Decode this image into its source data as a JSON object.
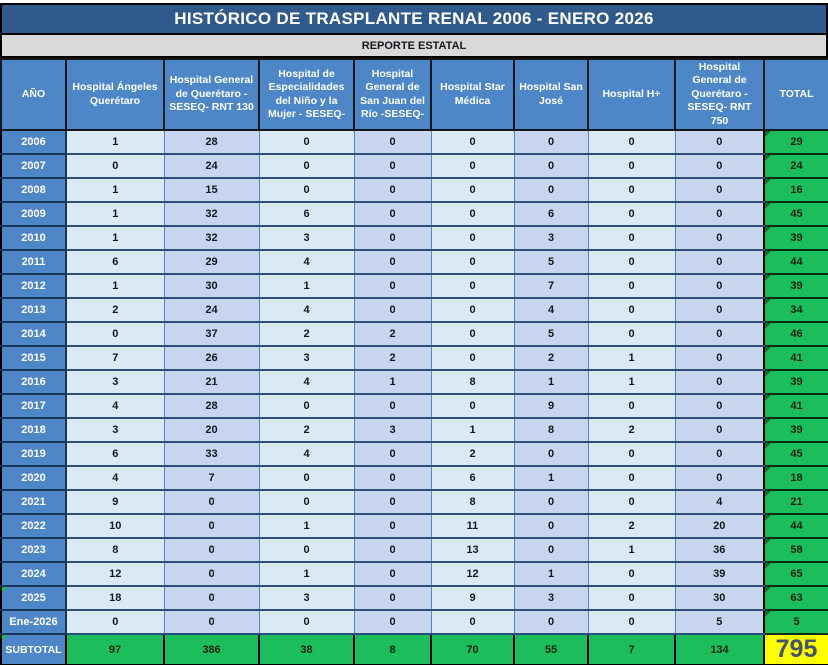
{
  "title": "HISTÓRICO DE TRASPLANTE RENAL 2006 - ENERO 2026",
  "subtitle": "REPORTE ESTATAL",
  "table": {
    "headers": [
      "AÑO",
      "Hospital Ángeles Querétaro",
      "Hospital General de Querétaro - SESEQ- RNT 130",
      "Hospital de Especialidades del Niño y la Mujer - SESEQ-",
      "Hospital General de San Juan del Río -SESEQ-",
      "Hospital Star Médica",
      "Hospital San José",
      "Hospital H+",
      "Hospital General de Querétaro - SESEQ- RNT 750",
      "TOTAL"
    ],
    "rows": [
      {
        "year": "2006",
        "values": [
          1,
          28,
          0,
          0,
          0,
          0,
          0,
          0
        ],
        "total": 29
      },
      {
        "year": "2007",
        "values": [
          0,
          24,
          0,
          0,
          0,
          0,
          0,
          0
        ],
        "total": 24
      },
      {
        "year": "2008",
        "values": [
          1,
          15,
          0,
          0,
          0,
          0,
          0,
          0
        ],
        "total": 16
      },
      {
        "year": "2009",
        "values": [
          1,
          32,
          6,
          0,
          0,
          6,
          0,
          0
        ],
        "total": 45
      },
      {
        "year": "2010",
        "values": [
          1,
          32,
          3,
          0,
          0,
          3,
          0,
          0
        ],
        "total": 39
      },
      {
        "year": "2011",
        "values": [
          6,
          29,
          4,
          0,
          0,
          5,
          0,
          0
        ],
        "total": 44
      },
      {
        "year": "2012",
        "values": [
          1,
          30,
          1,
          0,
          0,
          7,
          0,
          0
        ],
        "total": 39
      },
      {
        "year": "2013",
        "values": [
          2,
          24,
          4,
          0,
          0,
          4,
          0,
          0
        ],
        "total": 34
      },
      {
        "year": "2014",
        "values": [
          0,
          37,
          2,
          2,
          0,
          5,
          0,
          0
        ],
        "total": 46
      },
      {
        "year": "2015",
        "values": [
          7,
          26,
          3,
          2,
          0,
          2,
          1,
          0
        ],
        "total": 41
      },
      {
        "year": "2016",
        "values": [
          3,
          21,
          4,
          1,
          8,
          1,
          1,
          0
        ],
        "total": 39
      },
      {
        "year": "2017",
        "values": [
          4,
          28,
          0,
          0,
          0,
          9,
          0,
          0
        ],
        "total": 41
      },
      {
        "year": "2018",
        "values": [
          3,
          20,
          2,
          3,
          1,
          8,
          2,
          0
        ],
        "total": 39
      },
      {
        "year": "2019",
        "values": [
          6,
          33,
          4,
          0,
          2,
          0,
          0,
          0
        ],
        "total": 45
      },
      {
        "year": "2020",
        "values": [
          4,
          7,
          0,
          0,
          6,
          1,
          0,
          0
        ],
        "total": 18
      },
      {
        "year": "2021",
        "values": [
          9,
          0,
          0,
          0,
          8,
          0,
          0,
          4
        ],
        "total": 21
      },
      {
        "year": "2022",
        "values": [
          10,
          0,
          1,
          0,
          11,
          0,
          2,
          20
        ],
        "total": 44
      },
      {
        "year": "2023",
        "values": [
          8,
          0,
          0,
          0,
          13,
          0,
          1,
          36
        ],
        "total": 58
      },
      {
        "year": "2024",
        "values": [
          12,
          0,
          1,
          0,
          12,
          1,
          0,
          39
        ],
        "total": 65
      },
      {
        "year": "2025",
        "values": [
          18,
          0,
          3,
          0,
          9,
          3,
          0,
          30
        ],
        "total": 63,
        "corner_marker": true
      },
      {
        "year": "Ene-2026",
        "values": [
          0,
          0,
          0,
          0,
          0,
          0,
          0,
          5
        ],
        "total": 5
      }
    ],
    "subtotal_label": "SUBTOTAL",
    "subtotal_values": [
      97,
      386,
      38,
      8,
      70,
      55,
      7,
      134
    ],
    "grand_total": 795
  },
  "colors": {
    "title_bg": "#305A8C",
    "subtitle_bg": "#D9D9D9",
    "header_blue": "#4E87C8",
    "column_light": "#DAEAF5",
    "column_dark": "#C7D6EE",
    "total_green": "#1CBE5B",
    "grand_total_yellow": "#FFFF00",
    "grand_total_text": "#44546A",
    "row_border_navy": "#17375E"
  }
}
